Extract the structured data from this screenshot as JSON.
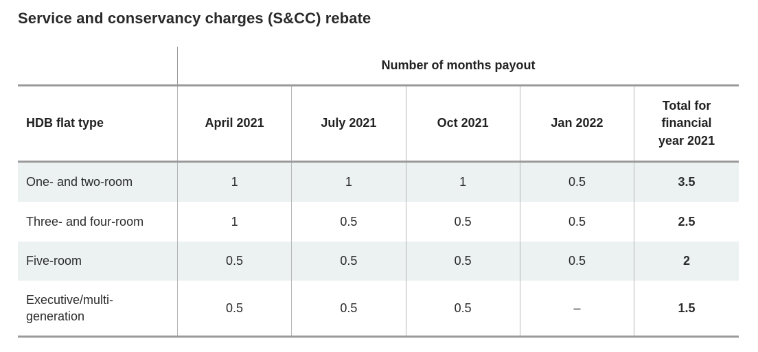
{
  "title": "Service and conservancy charges (S&CC) rebate",
  "table": {
    "group_header": "Number of months payout",
    "columns": [
      "HDB flat type",
      "April 2021",
      "July 2021",
      "Oct 2021",
      "Jan 2022",
      "Total for financial year 2021"
    ],
    "rows": [
      {
        "type": "One- and two-room",
        "april_2021": "1",
        "july_2021": "1",
        "oct_2021": "1",
        "jan_2022": "0.5",
        "total": "3.5"
      },
      {
        "type": "Three- and four-room",
        "april_2021": "1",
        "july_2021": "0.5",
        "oct_2021": "0.5",
        "jan_2022": "0.5",
        "total": "2.5"
      },
      {
        "type": "Five-room",
        "april_2021": "0.5",
        "july_2021": "0.5",
        "oct_2021": "0.5",
        "jan_2022": "0.5",
        "total": "2"
      },
      {
        "type": "Executive/multi-generation",
        "april_2021": "0.5",
        "july_2021": "0.5",
        "oct_2021": "0.5",
        "jan_2022": "–",
        "total": "1.5"
      }
    ]
  },
  "colors": {
    "shaded_row": "#ecf1f2",
    "rule": "#9a9a9a",
    "divider": "#b5b5b5"
  }
}
